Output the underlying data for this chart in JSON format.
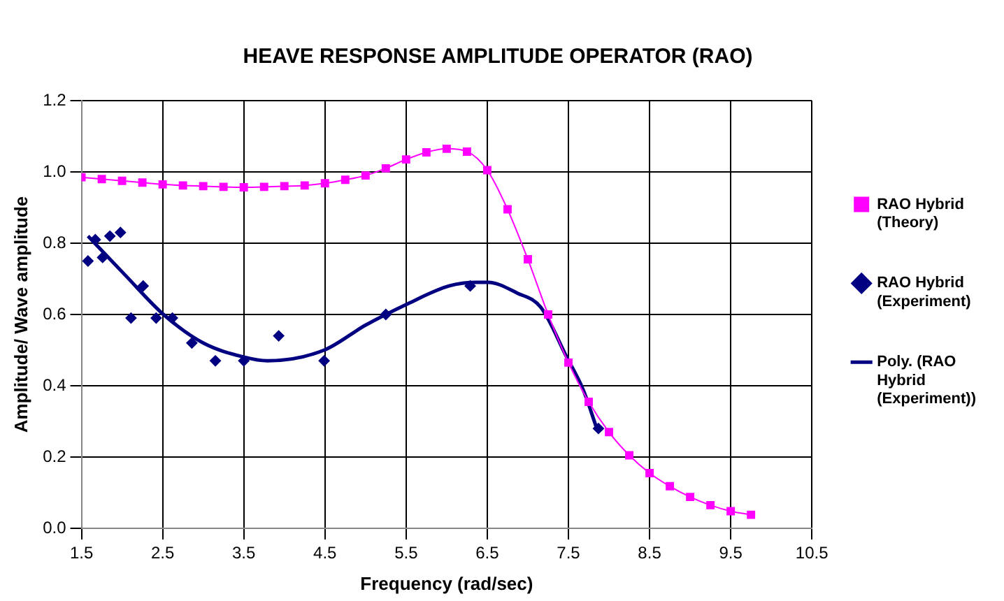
{
  "chart_data": {
    "type": "line",
    "title": "HEAVE RESPONSE AMPLITUDE OPERATOR (RAO)",
    "xlabel": "Frequency (rad/sec)",
    "ylabel": "Amplitude/ Wave amplitude",
    "xlim": [
      1.5,
      10.5
    ],
    "xticks": [
      1.5,
      2.5,
      3.5,
      4.5,
      5.5,
      6.5,
      7.5,
      8.5,
      9.5,
      10.5
    ],
    "ylim": [
      0,
      1.2
    ],
    "yticks": [
      {
        "value": 0,
        "label": "0.0"
      },
      {
        "value": 0.2,
        "label": "0.2"
      },
      {
        "value": 0.4,
        "label": "0.4"
      },
      {
        "value": 0.6,
        "label": "0.6"
      },
      {
        "value": 0.8,
        "label": "0.8"
      },
      {
        "value": 1,
        "label": "1.0"
      },
      {
        "value": 1.2,
        "label": "1.2"
      }
    ],
    "grid": true,
    "legend": "right",
    "series": [
      {
        "name": "RAO Hybrid (Theory)",
        "type": "line",
        "marker": "square",
        "color": "#ff00ff",
        "x": [
          1.5,
          1.75,
          2.0,
          2.25,
          2.5,
          2.75,
          3.0,
          3.25,
          3.5,
          3.75,
          4.0,
          4.25,
          4.5,
          4.75,
          5.0,
          5.25,
          5.5,
          5.75,
          6.0,
          6.25,
          6.5,
          6.75,
          7.0,
          7.25,
          7.5,
          7.75,
          8.0,
          8.25,
          8.5,
          8.75,
          9.0,
          9.25,
          9.5,
          9.75
        ],
        "values": [
          0.985,
          0.98,
          0.975,
          0.97,
          0.965,
          0.962,
          0.96,
          0.958,
          0.957,
          0.958,
          0.96,
          0.962,
          0.968,
          0.978,
          0.99,
          1.01,
          1.035,
          1.055,
          1.065,
          1.057,
          1.005,
          0.895,
          0.755,
          0.6,
          0.465,
          0.355,
          0.27,
          0.205,
          0.155,
          0.118,
          0.088,
          0.065,
          0.048,
          0.038
        ]
      },
      {
        "name": "RAO Hybrid (Experiment)",
        "type": "scatter",
        "marker": "diamond",
        "color": "#000080",
        "x": [
          1.58,
          1.67,
          1.76,
          1.85,
          1.98,
          2.11,
          2.26,
          2.42,
          2.62,
          2.86,
          3.15,
          3.5,
          3.93,
          4.49,
          5.25,
          6.29,
          7.87
        ],
        "values": [
          0.75,
          0.81,
          0.76,
          0.82,
          0.83,
          0.59,
          0.68,
          0.59,
          0.59,
          0.52,
          0.47,
          0.47,
          0.54,
          0.47,
          0.6,
          0.68,
          0.28
        ]
      },
      {
        "name": "Poly. (RAO Hybrid (Experiment))",
        "type": "line",
        "marker": "none",
        "color": "#000080",
        "x": [
          1.58,
          2.04,
          2.51,
          3.0,
          3.51,
          3.79,
          4.49,
          5.0,
          5.52,
          6.03,
          6.37,
          6.51,
          6.87,
          7.16,
          7.48,
          7.68,
          7.85
        ],
        "values": [
          0.82,
          0.71,
          0.6,
          0.52,
          0.48,
          0.47,
          0.5,
          0.57,
          0.63,
          0.68,
          0.69,
          0.69,
          0.66,
          0.62,
          0.48,
          0.39,
          0.28
        ]
      }
    ]
  }
}
